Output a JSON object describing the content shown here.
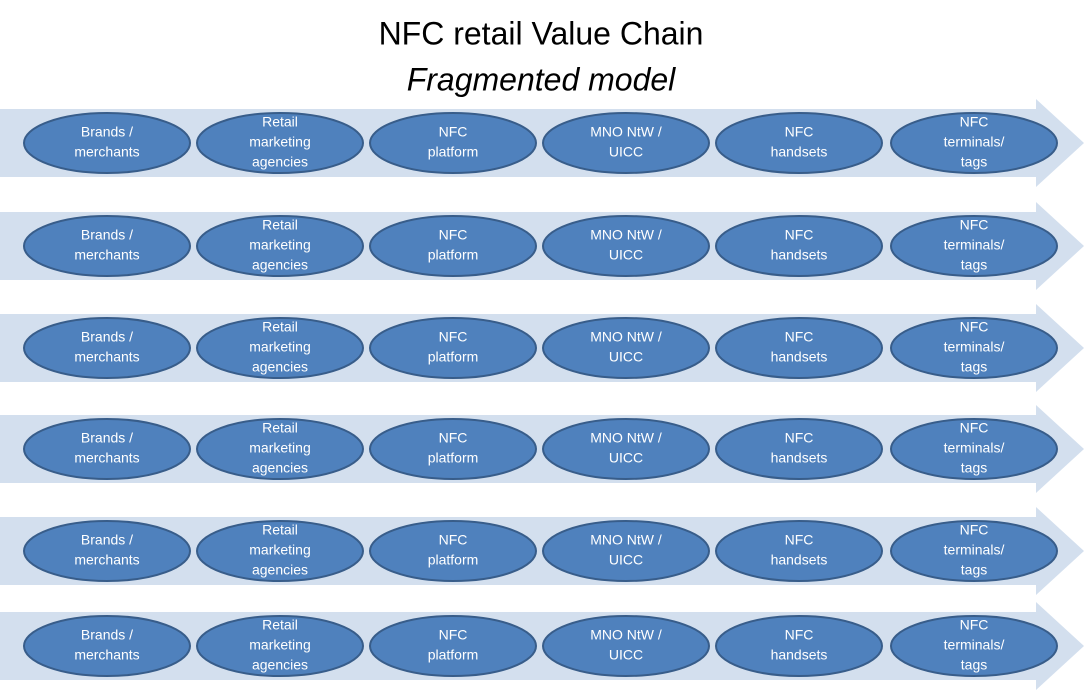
{
  "title": "NFC retail Value Chain",
  "subtitle": "Fragmented model",
  "rows": [
    {
      "nodes": [
        {
          "lines": [
            "Brands  /",
            "merchants"
          ]
        },
        {
          "lines": [
            "Retail",
            "marketing",
            "agencies"
          ]
        },
        {
          "lines": [
            "NFC",
            "platform"
          ]
        },
        {
          "lines": [
            "MNO NtW /",
            "UICC"
          ]
        },
        {
          "lines": [
            "NFC",
            "handsets"
          ]
        },
        {
          "lines": [
            "NFC",
            "terminals/",
            "tags"
          ]
        }
      ]
    },
    {
      "nodes": [
        {
          "lines": [
            "Brands  /",
            "merchants"
          ]
        },
        {
          "lines": [
            "Retail",
            "marketing",
            "agencies"
          ]
        },
        {
          "lines": [
            "NFC",
            "platform"
          ]
        },
        {
          "lines": [
            "MNO NtW /",
            "UICC"
          ]
        },
        {
          "lines": [
            "NFC",
            "handsets"
          ]
        },
        {
          "lines": [
            "NFC",
            "terminals/",
            "tags"
          ]
        }
      ]
    },
    {
      "nodes": [
        {
          "lines": [
            "Brands  /",
            "merchants"
          ]
        },
        {
          "lines": [
            "Retail",
            "marketing",
            "agencies"
          ]
        },
        {
          "lines": [
            "NFC",
            "platform"
          ]
        },
        {
          "lines": [
            "MNO NtW /",
            "UICC"
          ]
        },
        {
          "lines": [
            "NFC",
            "handsets"
          ]
        },
        {
          "lines": [
            "NFC",
            "terminals/",
            "tags"
          ]
        }
      ]
    },
    {
      "nodes": [
        {
          "lines": [
            "Brands  /",
            "merchants"
          ]
        },
        {
          "lines": [
            "Retail",
            "marketing",
            "agencies"
          ]
        },
        {
          "lines": [
            "NFC",
            "platform"
          ]
        },
        {
          "lines": [
            "MNO NtW /",
            "UICC"
          ]
        },
        {
          "lines": [
            "NFC",
            "handsets"
          ]
        },
        {
          "lines": [
            "NFC",
            "terminals/",
            "tags"
          ]
        }
      ]
    },
    {
      "nodes": [
        {
          "lines": [
            "Brands  /",
            "merchants"
          ]
        },
        {
          "lines": [
            "Retail",
            "marketing",
            "agencies"
          ]
        },
        {
          "lines": [
            "NFC",
            "platform"
          ]
        },
        {
          "lines": [
            "MNO NtW /",
            "UICC"
          ]
        },
        {
          "lines": [
            "NFC",
            "handsets"
          ]
        },
        {
          "lines": [
            "NFC",
            "terminals/",
            "tags"
          ]
        }
      ]
    },
    {
      "nodes": [
        {
          "lines": [
            "Brands  /",
            "merchants"
          ]
        },
        {
          "lines": [
            "Retail",
            "marketing",
            "agencies"
          ]
        },
        {
          "lines": [
            "NFC",
            "platform"
          ]
        },
        {
          "lines": [
            "MNO NtW /",
            "UICC"
          ]
        },
        {
          "lines": [
            "NFC",
            "handsets"
          ]
        },
        {
          "lines": [
            "NFC",
            "terminals/",
            "tags"
          ]
        }
      ]
    }
  ]
}
